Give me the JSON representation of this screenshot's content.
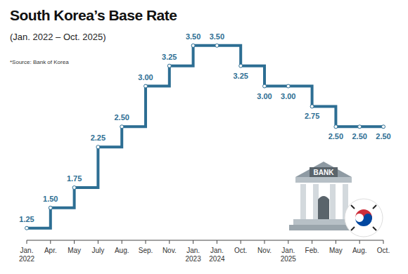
{
  "chart_data": {
    "type": "line",
    "title": "South Korea’s Base Rate",
    "subtitle": "(Jan. 2022 – Oct. 2025)",
    "annotations": [
      "*Source: Bank of Korea",
      "BANK"
    ],
    "categories": [
      "Jan. 2022",
      "Apr.",
      "May",
      "July",
      "Aug.",
      "Sep.",
      "Nov.",
      "Jan. 2023",
      "Jan. 2024",
      "Oct.",
      "Nov.",
      "Jan. 2025",
      "Feb.",
      "May",
      "Aug.",
      "Oct."
    ],
    "values": [
      1.25,
      1.5,
      1.75,
      2.25,
      2.5,
      3.0,
      3.25,
      3.5,
      3.5,
      3.25,
      3.0,
      3.0,
      2.75,
      2.5,
      2.5,
      2.5
    ],
    "value_labels": [
      "1.25",
      "1.50",
      "1.75",
      "2.25",
      "2.50",
      "3.00",
      "3.25",
      "3.50",
      "3.50",
      "3.25",
      "3.00",
      "3.00",
      "2.75",
      "2.50",
      "2.50",
      "2.50"
    ],
    "color": "#2d6e93",
    "ylim": [
      1.1,
      3.75
    ],
    "tick_labels": "x",
    "data_labels": true,
    "marker": "circle",
    "line_style": "step",
    "grid": false
  }
}
